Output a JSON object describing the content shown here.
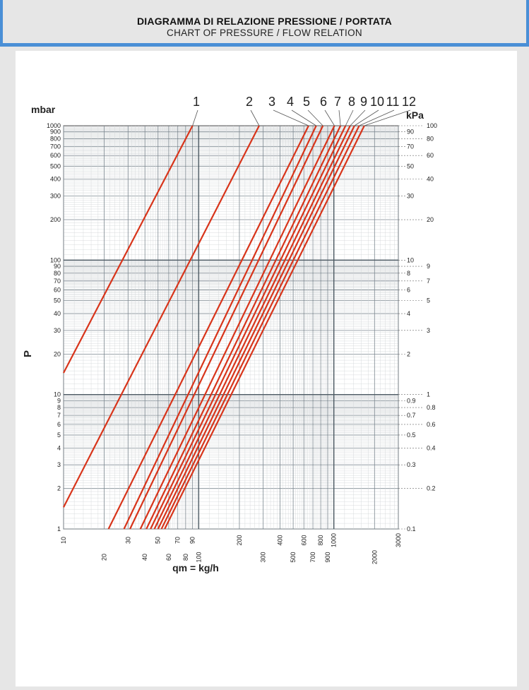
{
  "header": {
    "title": "DIAGRAMMA DI RELAZIONE PRESSIONE / PORTATA",
    "subtitle": "CHART OF PRESSURE / FLOW RELATION"
  },
  "chart_data": {
    "type": "line",
    "xscale": "log",
    "yscale": "log",
    "grid": true,
    "xlim": [
      10,
      3000
    ],
    "ylim": [
      1,
      1000
    ],
    "xlabel": "qm = kg/h",
    "ylabel": "P",
    "left_unit": "mbar",
    "right_unit": "kPa",
    "x_ticks": [
      "10",
      "20",
      "30",
      "40",
      "50",
      "60",
      "70",
      "80",
      "90",
      "100",
      "200",
      "300",
      "400",
      "500",
      "600",
      "700",
      "800",
      "900",
      "1000",
      "2000",
      "3000"
    ],
    "y_ticks_left": [
      "1",
      "2",
      "3",
      "4",
      "5",
      "6",
      "7",
      "8",
      "9",
      "10",
      "20",
      "30",
      "40",
      "50",
      "60",
      "70",
      "80",
      "90",
      "100",
      "200",
      "300",
      "400",
      "500",
      "600",
      "700",
      "800",
      "900",
      "1000"
    ],
    "y_ticks_right": [
      "0.1",
      "0.2",
      "0.3",
      "0.4",
      "0.5",
      "0.6",
      "0.7",
      "0.8",
      "0.9",
      "1",
      "2",
      "3",
      "4",
      "5",
      "6",
      "7",
      "8",
      "9",
      "10",
      "20",
      "30",
      "40",
      "50",
      "60",
      "70",
      "80",
      "90",
      "100"
    ],
    "series_color": "#d8341a",
    "series": [
      {
        "name": "1",
        "points": [
          [
            10,
            14.5
          ],
          [
            90,
            1000
          ]
        ]
      },
      {
        "name": "2",
        "points": [
          [
            10,
            1.45
          ],
          [
            280,
            1000
          ]
        ]
      },
      {
        "name": "3",
        "points": [
          [
            21.5,
            1
          ],
          [
            650,
            1000
          ]
        ]
      },
      {
        "name": "4",
        "points": [
          [
            28,
            1
          ],
          [
            740,
            1000
          ]
        ]
      },
      {
        "name": "5",
        "points": [
          [
            31,
            1
          ],
          [
            830,
            1000
          ]
        ]
      },
      {
        "name": "6",
        "points": [
          [
            37,
            1
          ],
          [
            1010,
            1000
          ]
        ]
      },
      {
        "name": "7",
        "points": [
          [
            41,
            1
          ],
          [
            1120,
            1000
          ]
        ]
      },
      {
        "name": "8",
        "points": [
          [
            44,
            1
          ],
          [
            1220,
            1000
          ]
        ]
      },
      {
        "name": "9",
        "points": [
          [
            47,
            1
          ],
          [
            1320,
            1000
          ]
        ]
      },
      {
        "name": "10",
        "points": [
          [
            50,
            1
          ],
          [
            1420,
            1000
          ]
        ]
      },
      {
        "name": "11",
        "points": [
          [
            53,
            1
          ],
          [
            1540,
            1000
          ]
        ]
      },
      {
        "name": "12",
        "points": [
          [
            56,
            1
          ],
          [
            1680,
            1000
          ]
        ]
      }
    ]
  }
}
